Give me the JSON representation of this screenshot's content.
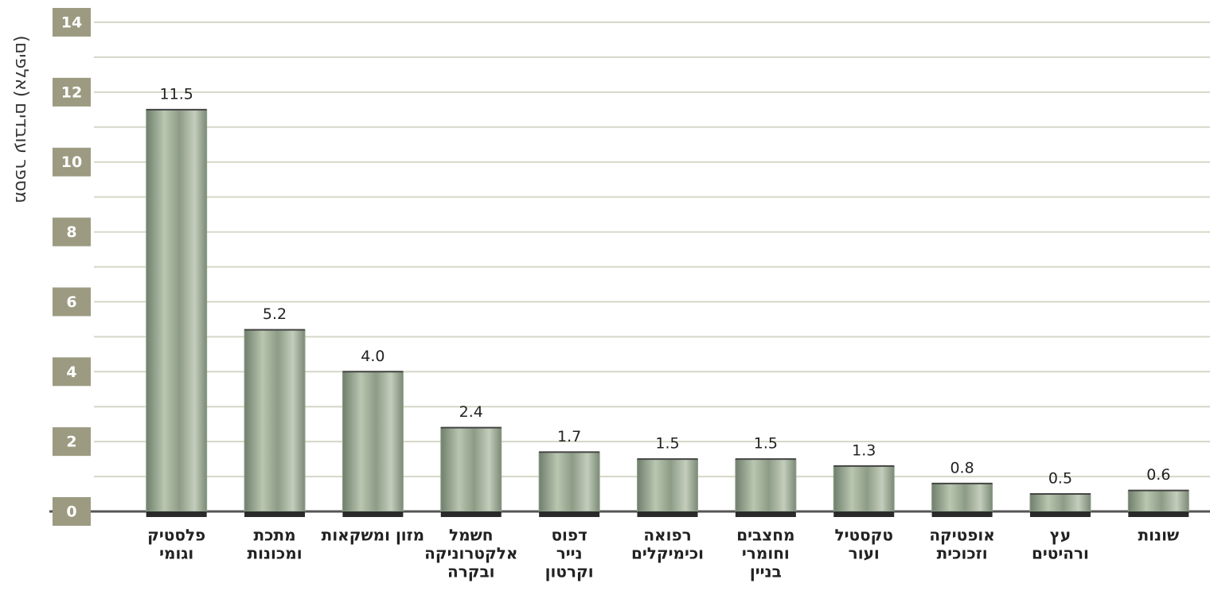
{
  "chart_data": {
    "type": "bar",
    "y_label": "מספר עובדים (אלפים)",
    "categories": [
      [
        "פלסטיק",
        "וגומי"
      ],
      [
        "מתכת",
        "ומכונות"
      ],
      [
        "מזון ומשקאות"
      ],
      [
        "חשמל",
        "אלקטרוניקה",
        "ובקרה"
      ],
      [
        "דפוס",
        "נייר",
        "וקרטון"
      ],
      [
        "רפואה",
        "וכימיקלים"
      ],
      [
        "מחצבים",
        "וחומרי",
        "בניין"
      ],
      [
        "טקסטיל",
        "ועור"
      ],
      [
        "אופטיקה",
        "וזכוכית"
      ],
      [
        "עץ",
        "ורהיטים"
      ],
      [
        "שונות"
      ]
    ],
    "values": [
      11.5,
      5.2,
      4.0,
      2.4,
      1.7,
      1.5,
      1.5,
      1.3,
      0.8,
      0.5,
      0.6
    ],
    "value_labels": [
      "11.5",
      "5.2",
      "4.0",
      "2.4",
      "1.7",
      "1.5",
      "1.5",
      "1.3",
      "0.8",
      "0.5",
      "0.6"
    ],
    "ylim": [
      0,
      14
    ],
    "yticks": [
      0,
      2,
      4,
      6,
      8,
      10,
      12,
      14
    ],
    "minor_yticks": [
      1,
      3,
      5,
      7,
      9,
      11,
      13
    ],
    "grid": true,
    "color": "#8fa08a"
  }
}
